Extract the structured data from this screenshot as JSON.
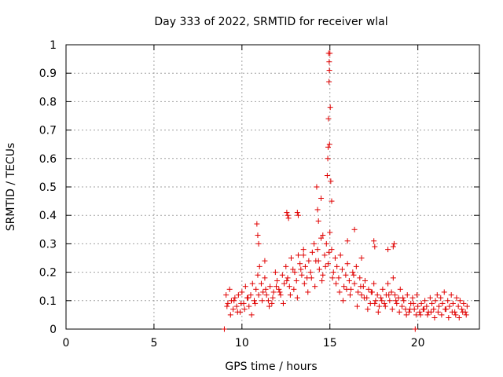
{
  "chart_data": {
    "type": "scatter",
    "title": "Day 333 of 2022, SRMTID for receiver wlal",
    "xlabel": "GPS time / hours",
    "ylabel": "SRMTID / TECUs",
    "xlim": [
      0,
      23.5
    ],
    "ylim": [
      0,
      1
    ],
    "x_ticks": [
      "0",
      "5",
      "10",
      "15",
      "20"
    ],
    "y_ticks": [
      "0",
      "0.1",
      "0.2",
      "0.3",
      "0.4",
      "0.5",
      "0.6",
      "0.7",
      "0.8",
      "0.9",
      "1"
    ],
    "grid": true,
    "marker": "plus",
    "color": "#e00000",
    "series": [
      {
        "name": "SRMTID",
        "x": [
          9.0,
          19.85,
          9.1,
          9.2,
          9.3,
          9.4,
          9.5,
          9.6,
          9.7,
          9.8,
          9.9,
          10.0,
          10.1,
          10.2,
          10.3,
          10.4,
          10.5,
          10.6,
          10.7,
          10.8,
          10.9,
          11.0,
          11.1,
          11.2,
          11.3,
          11.4,
          11.5,
          11.6,
          11.7,
          11.8,
          11.9,
          12.0,
          12.1,
          12.2,
          12.3,
          12.4,
          12.5,
          12.6,
          12.7,
          12.8,
          12.9,
          13.0,
          13.1,
          13.2,
          13.3,
          13.4,
          13.5,
          13.6,
          13.7,
          13.8,
          13.9,
          14.0,
          14.1,
          14.2,
          14.3,
          14.4,
          14.5,
          14.6,
          14.7,
          14.8,
          14.9,
          15.0,
          15.1,
          15.2,
          15.3,
          15.4,
          15.5,
          15.6,
          15.7,
          15.8,
          15.9,
          16.0,
          16.1,
          16.2,
          16.3,
          16.4,
          16.5,
          16.6,
          16.7,
          16.8,
          16.9,
          17.0,
          17.1,
          17.2,
          17.3,
          17.4,
          17.5,
          17.6,
          17.7,
          17.8,
          17.9,
          18.0,
          18.1,
          18.2,
          18.3,
          18.4,
          18.5,
          18.6,
          18.7,
          18.8,
          18.9,
          19.0,
          19.1,
          19.2,
          19.3,
          19.4,
          19.5,
          19.6,
          19.7,
          19.8,
          19.9,
          20.0,
          20.1,
          20.2,
          20.3,
          20.4,
          20.5,
          20.6,
          20.7,
          20.8,
          20.9,
          21.0,
          21.1,
          21.2,
          21.3,
          21.4,
          21.5,
          21.6,
          21.7,
          21.8,
          21.9,
          22.0,
          22.1,
          22.2,
          22.3,
          22.4,
          22.5,
          22.6,
          22.7,
          22.8,
          9.15,
          9.35,
          9.55,
          9.75,
          9.95,
          10.15,
          10.35,
          10.55,
          10.75,
          10.95,
          11.15,
          11.35,
          11.55,
          11.75,
          11.95,
          12.15,
          12.35,
          12.55,
          12.75,
          12.95,
          13.15,
          13.35,
          13.55,
          13.75,
          13.95,
          14.15,
          14.35,
          14.55,
          14.75,
          14.95,
          15.15,
          15.35,
          15.55,
          15.75,
          15.95,
          16.15,
          16.35,
          16.55,
          16.75,
          16.95,
          17.15,
          17.35,
          17.55,
          17.75,
          17.95,
          18.15,
          18.35,
          18.55,
          18.75,
          18.95,
          19.15,
          19.35,
          19.55,
          19.75,
          19.95,
          20.15,
          20.35,
          20.55,
          20.75,
          20.95,
          21.15,
          21.35,
          21.55,
          21.75,
          21.95,
          22.15,
          22.35,
          22.55,
          22.75,
          10.85,
          10.9,
          10.95,
          12.55,
          12.6,
          12.65,
          13.15,
          13.2,
          14.25,
          14.3,
          14.35,
          14.5,
          14.6,
          14.85,
          14.88,
          14.9,
          14.92,
          14.95,
          14.97,
          15.0,
          15.02,
          14.93,
          14.96,
          14.98,
          15.05,
          15.1,
          16.4,
          17.5,
          17.55,
          18.3,
          18.6,
          18.65,
          11.3,
          13.5,
          16.0,
          16.8
        ],
        "y": [
          0.0,
          0.0,
          0.12,
          0.09,
          0.14,
          0.1,
          0.07,
          0.11,
          0.08,
          0.12,
          0.06,
          0.13,
          0.09,
          0.15,
          0.11,
          0.08,
          0.12,
          0.16,
          0.1,
          0.14,
          0.19,
          0.22,
          0.16,
          0.13,
          0.18,
          0.12,
          0.1,
          0.15,
          0.09,
          0.13,
          0.2,
          0.17,
          0.14,
          0.12,
          0.19,
          0.16,
          0.22,
          0.18,
          0.15,
          0.25,
          0.21,
          0.2,
          0.17,
          0.26,
          0.23,
          0.19,
          0.28,
          0.22,
          0.18,
          0.24,
          0.2,
          0.27,
          0.3,
          0.24,
          0.28,
          0.21,
          0.32,
          0.19,
          0.26,
          0.3,
          0.23,
          0.34,
          0.28,
          0.2,
          0.25,
          0.22,
          0.18,
          0.26,
          0.21,
          0.15,
          0.19,
          0.23,
          0.17,
          0.14,
          0.2,
          0.16,
          0.22,
          0.13,
          0.18,
          0.12,
          0.15,
          0.17,
          0.11,
          0.14,
          0.09,
          0.13,
          0.16,
          0.1,
          0.12,
          0.08,
          0.11,
          0.14,
          0.09,
          0.12,
          0.16,
          0.1,
          0.13,
          0.18,
          0.12,
          0.09,
          0.11,
          0.14,
          0.08,
          0.1,
          0.07,
          0.12,
          0.06,
          0.09,
          0.11,
          0.07,
          0.05,
          0.08,
          0.06,
          0.09,
          0.07,
          0.1,
          0.08,
          0.06,
          0.11,
          0.09,
          0.07,
          0.1,
          0.12,
          0.08,
          0.11,
          0.09,
          0.13,
          0.07,
          0.1,
          0.08,
          0.12,
          0.09,
          0.06,
          0.11,
          0.08,
          0.1,
          0.07,
          0.09,
          0.06,
          0.08,
          0.08,
          0.05,
          0.1,
          0.06,
          0.09,
          0.07,
          0.11,
          0.05,
          0.09,
          0.12,
          0.1,
          0.14,
          0.08,
          0.11,
          0.15,
          0.13,
          0.09,
          0.17,
          0.12,
          0.14,
          0.11,
          0.21,
          0.16,
          0.13,
          0.18,
          0.15,
          0.24,
          0.17,
          0.22,
          0.27,
          0.18,
          0.16,
          0.13,
          0.1,
          0.14,
          0.12,
          0.19,
          0.08,
          0.15,
          0.11,
          0.07,
          0.13,
          0.09,
          0.06,
          0.1,
          0.08,
          0.12,
          0.07,
          0.1,
          0.06,
          0.11,
          0.05,
          0.07,
          0.09,
          0.12,
          0.05,
          0.07,
          0.05,
          0.06,
          0.04,
          0.06,
          0.05,
          0.07,
          0.04,
          0.06,
          0.05,
          0.04,
          0.06,
          0.05,
          0.37,
          0.33,
          0.3,
          0.41,
          0.4,
          0.39,
          0.41,
          0.4,
          0.5,
          0.42,
          0.38,
          0.46,
          0.33,
          0.54,
          0.6,
          0.64,
          0.74,
          0.87,
          0.91,
          0.97,
          0.78,
          0.97,
          0.94,
          0.65,
          0.52,
          0.45,
          0.35,
          0.31,
          0.29,
          0.28,
          0.29,
          0.3,
          0.24,
          0.26,
          0.31,
          0.25
        ]
      }
    ]
  }
}
